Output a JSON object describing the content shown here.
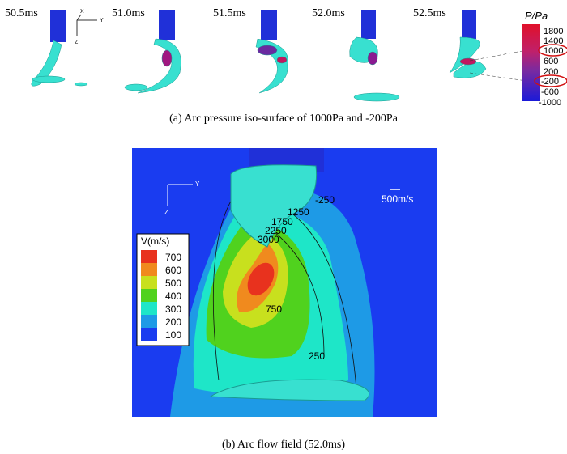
{
  "panel_a": {
    "times": [
      "50.5ms",
      "51.0ms",
      "51.5ms",
      "52.0ms",
      "52.5ms"
    ],
    "axes": [
      "X",
      "Y",
      "Z"
    ],
    "colorbar": {
      "title": "P/Pa",
      "ticks": [
        "1800",
        "1400",
        "1000",
        "600",
        "200",
        "-200",
        "-600",
        "-1000"
      ]
    },
    "caption": "(a) Arc pressure iso-surface of 1000Pa and -200Pa"
  },
  "panel_b": {
    "axes": [
      "Y",
      "Z"
    ],
    "legend": {
      "title": "V(m/s)",
      "entries": [
        "700",
        "600",
        "500",
        "400",
        "300",
        "200",
        "100"
      ]
    },
    "contour_labels": [
      "-250",
      "1250",
      "1750",
      "2250",
      "3000",
      "750",
      "250"
    ],
    "scale": "500m/s",
    "caption": "(b) Arc flow field (52.0ms)"
  }
}
